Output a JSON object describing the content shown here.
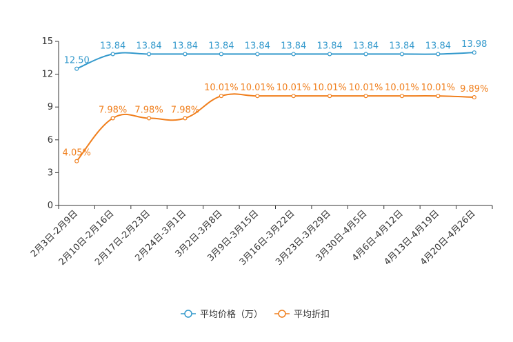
{
  "chart_data": {
    "type": "line",
    "categories": [
      "2月3日-2月9日",
      "2月10日-2月16日",
      "2月17日-2月23日",
      "2月24日-3月1日",
      "3月2日-3月8日",
      "3月9日-3月15日",
      "3月16日-3月22日",
      "3月23日-3月29日",
      "3月30日-4月5日",
      "4月6日-4月12日",
      "4月13日-4月19日",
      "4月20日-4月26日"
    ],
    "ylim": [
      0,
      15
    ],
    "yticks": [
      "0",
      "3",
      "6",
      "9",
      "12",
      "15"
    ],
    "series": [
      {
        "name": "平均价格（万）",
        "color": "#3399cc",
        "values": [
          12.5,
          13.84,
          13.84,
          13.84,
          13.84,
          13.84,
          13.84,
          13.84,
          13.84,
          13.84,
          13.84,
          13.98
        ],
        "labels": [
          "12.50",
          "13.84",
          "13.84",
          "13.84",
          "13.84",
          "13.84",
          "13.84",
          "13.84",
          "13.84",
          "13.84",
          "13.84",
          "13.98"
        ]
      },
      {
        "name": "平均折扣",
        "color": "#f07f1d",
        "values": [
          4.05,
          7.98,
          7.98,
          7.98,
          10.01,
          10.01,
          10.01,
          10.01,
          10.01,
          10.01,
          10.01,
          9.89
        ],
        "labels": [
          "4.05%",
          "7.98%",
          "7.98%",
          "7.98%",
          "10.01%",
          "10.01%",
          "10.01%",
          "10.01%",
          "10.01%",
          "10.01%",
          "10.01%",
          "9.89%"
        ]
      }
    ]
  }
}
